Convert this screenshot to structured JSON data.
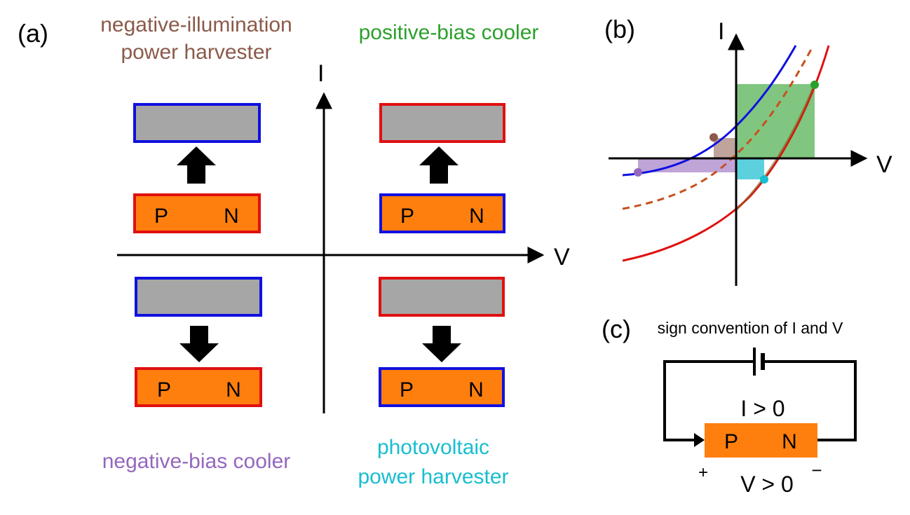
{
  "panel_a": {
    "label": "(a)",
    "axis_i": "I",
    "axis_v": "V",
    "q2_title_line1": "negative-illumination",
    "q2_title_line2": "power harvester",
    "q1_title": "positive-bias cooler",
    "q3_title": "negative-bias cooler",
    "q4_title_line1": "photovoltaic",
    "q4_title_line2": "power harvester",
    "p_label": "P",
    "n_label": "N"
  },
  "panel_b": {
    "label": "(b)",
    "axis_i": "I",
    "axis_v": "V"
  },
  "panel_c": {
    "label": "(c)",
    "title": "sign convention of I and V",
    "current_label": "I > 0",
    "voltage_label": "V > 0",
    "plus": "+",
    "minus": "−",
    "p_label": "P",
    "n_label": "N"
  },
  "colors": {
    "brown": "#8B5A4A",
    "green": "#2CA02C",
    "purple": "#9467BD",
    "cyan": "#17BECF",
    "blue": "#1010E0",
    "red": "#E01010",
    "orange": "#FF7F0E",
    "gray": "#A6A6A6"
  }
}
